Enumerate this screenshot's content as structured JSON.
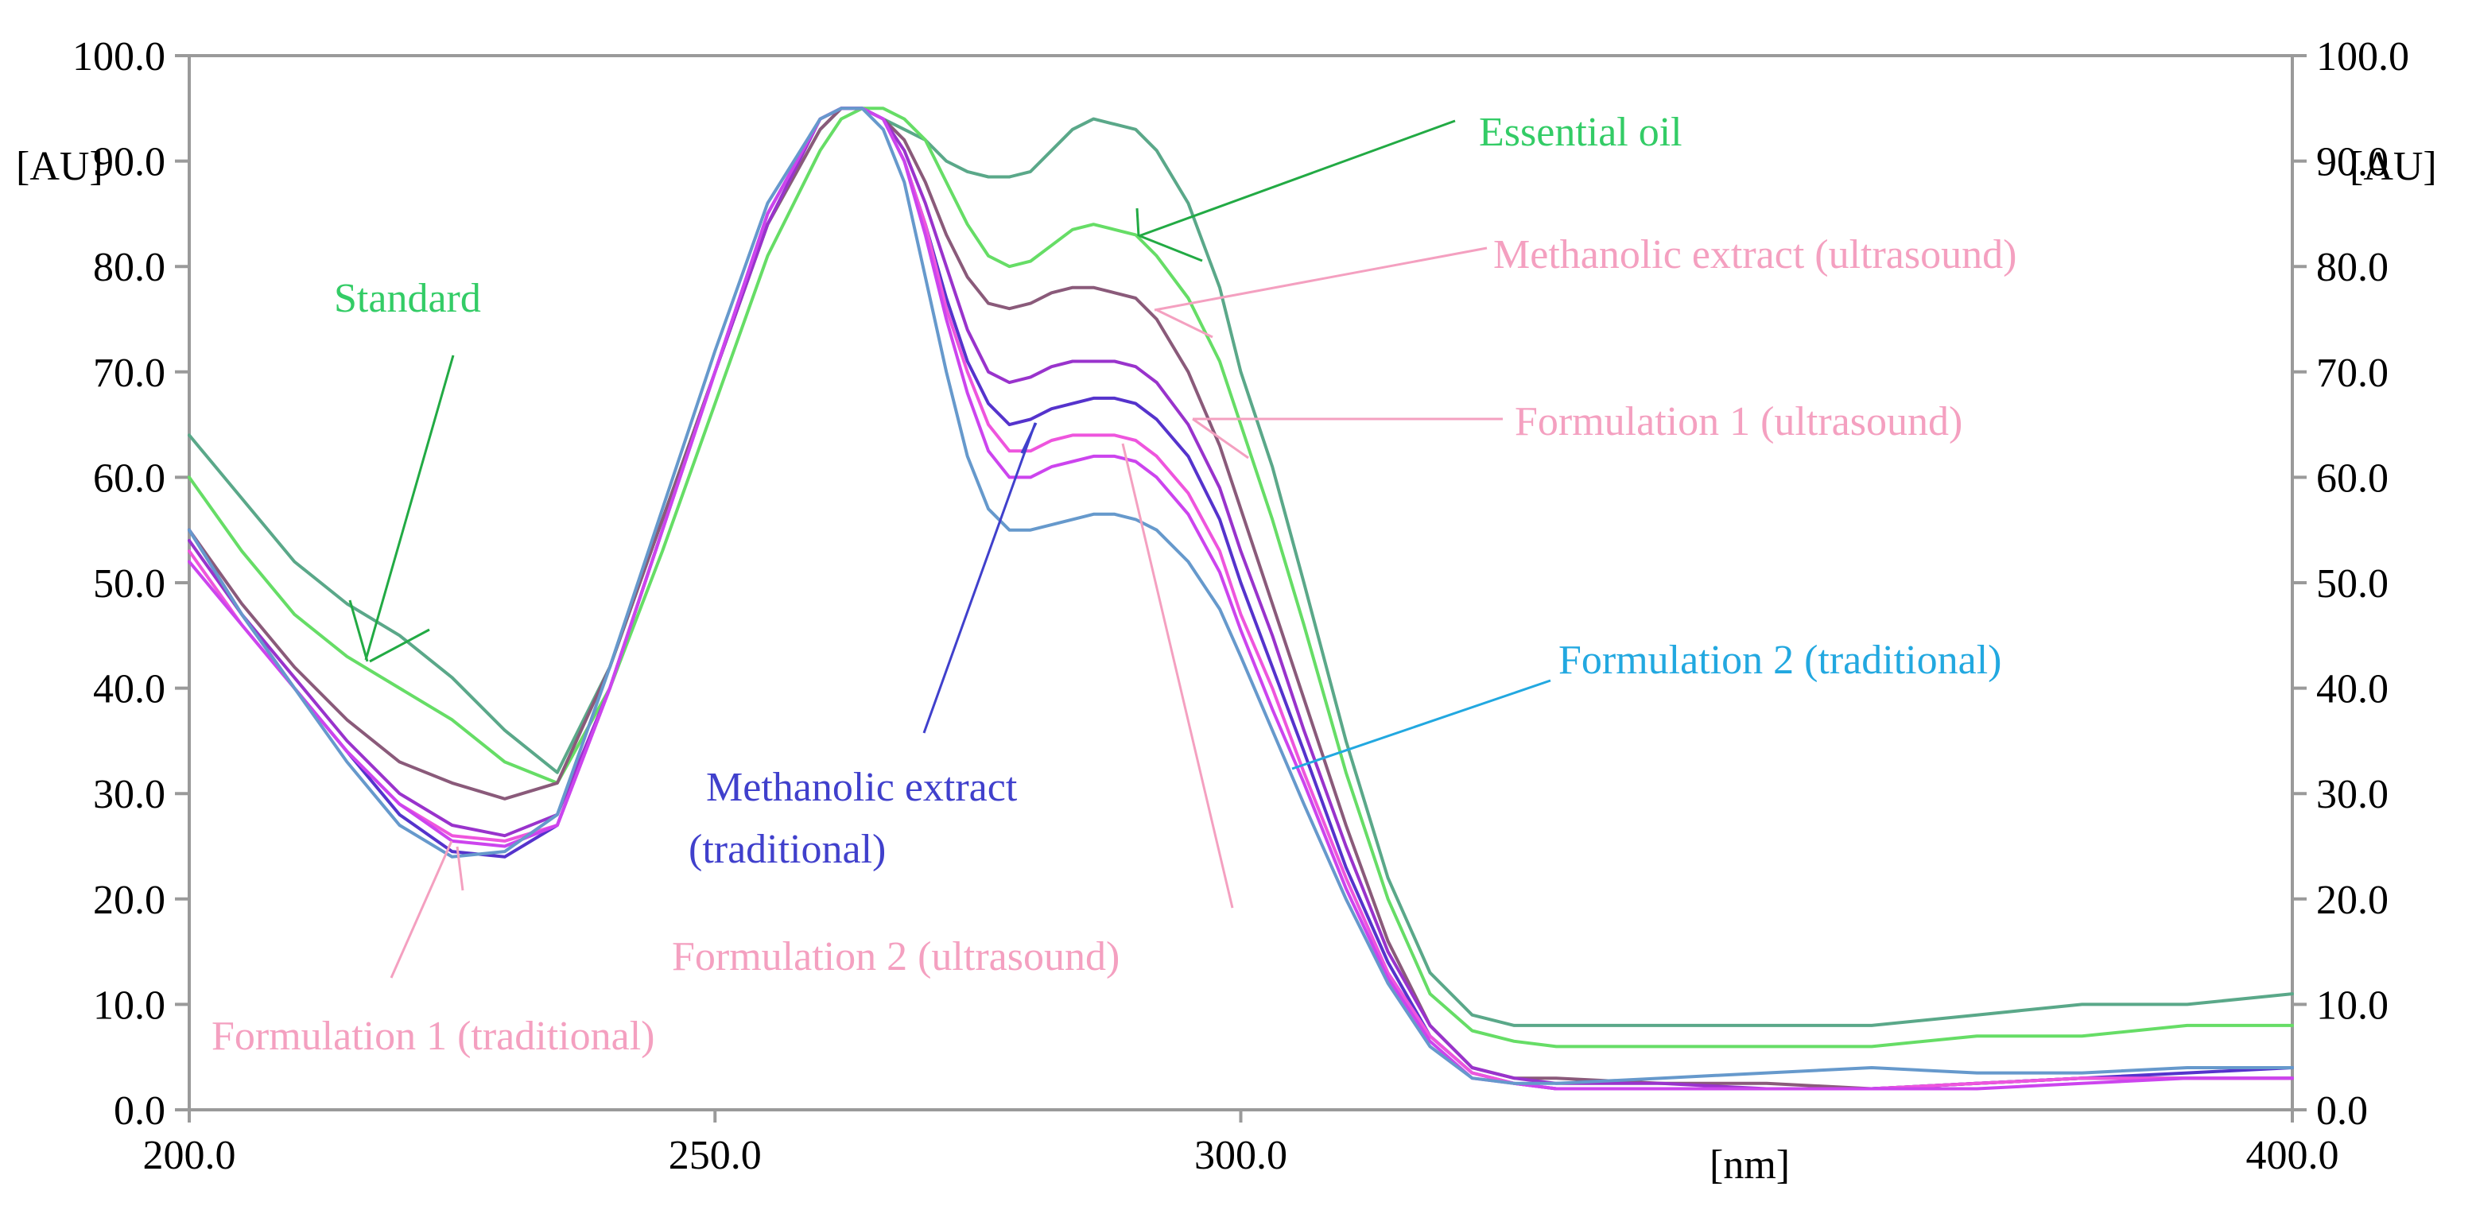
{
  "chart_data": {
    "type": "line",
    "title": "",
    "xlabel": "[nm]",
    "ylabel": "[AU]",
    "right_ylabel": "[AU]",
    "xlim": [
      200,
      400
    ],
    "ylim": [
      0,
      100
    ],
    "x_ticks": [
      "200.0",
      "250.0",
      "300.0",
      "400.0"
    ],
    "y_ticks": [
      "0.0",
      "10.0",
      "20.0",
      "30.0",
      "40.0",
      "50.0",
      "60.0",
      "70.0",
      "80.0",
      "90.0",
      "100.0"
    ],
    "grid": false,
    "legend": "none",
    "annotations": [
      {
        "text": "Standard",
        "color": "#33cc66"
      },
      {
        "text": "Essential oil",
        "color": "#33cc66"
      },
      {
        "text": "Methanolic extract (ultrasound)",
        "color": "#f4a0c0"
      },
      {
        "text": "Formulation 1 (ultrasound)",
        "color": "#f4a0c0"
      },
      {
        "text": "Formulation 2 (traditional)",
        "color": "#22a8e0"
      },
      {
        "text": "Methanolic extract",
        "color": "#4040cc"
      },
      {
        "text": "(traditional)",
        "color": "#4040cc"
      },
      {
        "text": "Formulation 2 (ultrasound)",
        "color": "#f4a0c0"
      },
      {
        "text": "Formulation 1 (traditional)",
        "color": "#f4a0c0"
      }
    ],
    "series": [
      {
        "color": "#5aa889",
        "x": [
          200,
          205,
          210,
          215,
          220,
          225,
          230,
          235,
          240,
          245,
          250,
          255,
          260,
          262,
          264,
          266,
          268,
          270,
          272,
          274,
          276,
          278,
          280,
          282,
          284,
          286,
          288,
          290,
          292,
          295,
          298,
          300,
          303,
          306,
          310,
          314,
          318,
          322,
          326,
          330,
          340,
          350,
          360,
          370,
          380,
          390,
          400
        ],
        "y": [
          64,
          58,
          52,
          48,
          45,
          41,
          36,
          32,
          42,
          56,
          70,
          84,
          93,
          95,
          95,
          94,
          93,
          92,
          90,
          89,
          88.5,
          88.5,
          89,
          91,
          93,
          94,
          93.5,
          93,
          91,
          86,
          78,
          70,
          61,
          50,
          35,
          22,
          13,
          9,
          8,
          8,
          8,
          8,
          8,
          9,
          10,
          10,
          11
        ]
      },
      {
        "color": "#66dd66",
        "x": [
          200,
          205,
          210,
          215,
          220,
          225,
          230,
          235,
          240,
          245,
          250,
          255,
          260,
          262,
          264,
          266,
          268,
          270,
          272,
          274,
          276,
          278,
          280,
          282,
          284,
          286,
          288,
          290,
          292,
          295,
          298,
          300,
          303,
          306,
          310,
          314,
          318,
          322,
          326,
          330,
          340,
          350,
          360,
          370,
          380,
          390,
          400
        ],
        "y": [
          60,
          53,
          47,
          43,
          40,
          37,
          33,
          31,
          40,
          53,
          67,
          81,
          91,
          94,
          95,
          95,
          94,
          92,
          88,
          84,
          81,
          80,
          80.5,
          82,
          83.5,
          84,
          83.5,
          83,
          81,
          77,
          71,
          65,
          56,
          46,
          32,
          20,
          11,
          7.5,
          6.5,
          6,
          6,
          6,
          6,
          7,
          7,
          8,
          8
        ]
      },
      {
        "color": "#8a5a7a",
        "x": [
          200,
          205,
          210,
          215,
          220,
          225,
          230,
          235,
          240,
          245,
          250,
          255,
          260,
          262,
          264,
          266,
          268,
          270,
          272,
          274,
          276,
          278,
          280,
          282,
          284,
          286,
          288,
          290,
          292,
          295,
          298,
          300,
          303,
          306,
          310,
          314,
          318,
          322,
          326,
          330,
          340,
          350,
          360,
          370,
          380,
          390,
          400
        ],
        "y": [
          55,
          48,
          42,
          37,
          33,
          31,
          29.5,
          31,
          42,
          56,
          70,
          84,
          93,
          95,
          95,
          94,
          92,
          88,
          83,
          79,
          76.5,
          76,
          76.5,
          77.5,
          78,
          78,
          77.5,
          77,
          75,
          70,
          63,
          57,
          48,
          39,
          27,
          16,
          8,
          4,
          3,
          3,
          2.5,
          2.5,
          2,
          2.5,
          3,
          3,
          3
        ]
      },
      {
        "color": "#9933cc",
        "x": [
          200,
          205,
          210,
          215,
          220,
          225,
          230,
          235,
          240,
          245,
          250,
          255,
          260,
          262,
          264,
          266,
          268,
          270,
          272,
          274,
          276,
          278,
          280,
          282,
          284,
          286,
          288,
          290,
          292,
          295,
          298,
          300,
          303,
          306,
          310,
          314,
          318,
          322,
          326,
          330,
          340,
          350,
          360,
          370,
          380,
          390,
          400
        ],
        "y": [
          54,
          47,
          41,
          35,
          30,
          27,
          26,
          28,
          40,
          55,
          70,
          84,
          94,
          95,
          95,
          94,
          91,
          86,
          80,
          74,
          70,
          69,
          69.5,
          70.5,
          71,
          71,
          71,
          70.5,
          69,
          65,
          59,
          53,
          45,
          36,
          25,
          15,
          8,
          4,
          3,
          2.5,
          2.5,
          2,
          2,
          2.5,
          3,
          3,
          3
        ]
      },
      {
        "color": "#5533cc",
        "x": [
          200,
          205,
          210,
          215,
          220,
          225,
          230,
          235,
          240,
          245,
          250,
          255,
          260,
          262,
          264,
          266,
          268,
          270,
          272,
          274,
          276,
          278,
          280,
          282,
          284,
          286,
          288,
          290,
          292,
          295,
          298,
          300,
          303,
          306,
          310,
          314,
          318,
          322,
          326,
          330,
          340,
          350,
          360,
          370,
          380,
          390,
          400
        ],
        "y": [
          55,
          47,
          40,
          34,
          28,
          24.5,
          24,
          27,
          40,
          55,
          70,
          85,
          94,
          95,
          95,
          94,
          90,
          84,
          77,
          71,
          67,
          65,
          65.5,
          66.5,
          67,
          67.5,
          67.5,
          67,
          65.5,
          62,
          56,
          50,
          42,
          34,
          23,
          14,
          7,
          3.5,
          2.5,
          2,
          2,
          2,
          2,
          2.5,
          3,
          3.5,
          4
        ]
      },
      {
        "color": "#ee55dd",
        "x": [
          200,
          205,
          210,
          215,
          220,
          225,
          230,
          235,
          240,
          245,
          250,
          255,
          260,
          262,
          264,
          266,
          268,
          270,
          272,
          274,
          276,
          278,
          280,
          282,
          284,
          286,
          288,
          290,
          292,
          295,
          298,
          300,
          303,
          306,
          310,
          314,
          318,
          322,
          326,
          330,
          340,
          350,
          360,
          370,
          380,
          390,
          400
        ],
        "y": [
          53,
          46,
          40,
          34,
          29,
          26,
          25.5,
          27,
          40,
          55,
          70,
          85,
          94,
          95,
          95,
          94,
          90,
          84,
          76,
          70,
          65,
          62.5,
          62.5,
          63.5,
          64,
          64,
          64,
          63.5,
          62,
          58.5,
          53,
          47,
          40,
          32,
          22,
          13,
          7,
          3.5,
          2.5,
          2,
          2,
          2,
          2,
          2.5,
          3,
          3,
          3
        ]
      },
      {
        "color": "#cc44ee",
        "x": [
          200,
          205,
          210,
          215,
          220,
          225,
          230,
          235,
          240,
          245,
          250,
          255,
          260,
          262,
          264,
          266,
          268,
          270,
          272,
          274,
          276,
          278,
          280,
          282,
          284,
          286,
          288,
          290,
          292,
          295,
          298,
          300,
          303,
          306,
          310,
          314,
          318,
          322,
          326,
          330,
          340,
          350,
          360,
          370,
          380,
          390,
          400
        ],
        "y": [
          52,
          46,
          40,
          34,
          29,
          25.5,
          25,
          27,
          40,
          55,
          70,
          85,
          94,
          95,
          95,
          94,
          90,
          83,
          75,
          68,
          62.5,
          60,
          60,
          61,
          61.5,
          62,
          62,
          61.5,
          60,
          56.5,
          51,
          45.5,
          38,
          31,
          21,
          12.5,
          6.5,
          3,
          2.5,
          2,
          2,
          2,
          2,
          2,
          2.5,
          3,
          3
        ]
      },
      {
        "color": "#6699cc",
        "x": [
          200,
          205,
          210,
          215,
          220,
          225,
          230,
          235,
          240,
          245,
          250,
          255,
          260,
          262,
          264,
          266,
          268,
          270,
          272,
          274,
          276,
          278,
          280,
          282,
          284,
          286,
          288,
          290,
          292,
          295,
          298,
          300,
          303,
          306,
          310,
          314,
          318,
          322,
          326,
          330,
          340,
          350,
          360,
          370,
          380,
          390,
          400
        ],
        "y": [
          55,
          47,
          40,
          33,
          27,
          24,
          24.5,
          28,
          42,
          57,
          72,
          86,
          94,
          95,
          95,
          93,
          88,
          79,
          70,
          62,
          57,
          55,
          55,
          55.5,
          56,
          56.5,
          56.5,
          56,
          55,
          52,
          47.5,
          43,
          36,
          29,
          20,
          12,
          6,
          3,
          2.5,
          2.5,
          3,
          3.5,
          4,
          3.5,
          3.5,
          4,
          4
        ]
      }
    ]
  }
}
